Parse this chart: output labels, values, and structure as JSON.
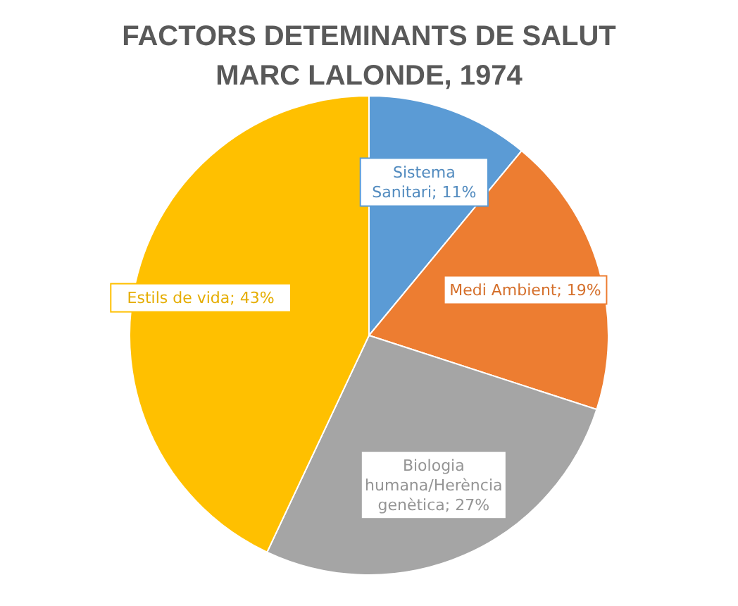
{
  "chart_data": {
    "type": "pie",
    "title": "FACTORS DETEMINANTS DE SALUT",
    "subtitle": "MARC LALONDE, 1974",
    "categories": [
      "Sistema Sanitari",
      "Medi Ambient",
      "Biologia humana/Herència genètica",
      "Estils de vida"
    ],
    "values": [
      11,
      19,
      27,
      43
    ],
    "value_labels": [
      "11%",
      "19%",
      "27%",
      "43%"
    ],
    "colors": [
      "#5b9bd5",
      "#ed7d31",
      "#a5a5a5",
      "#ffc000"
    ]
  }
}
